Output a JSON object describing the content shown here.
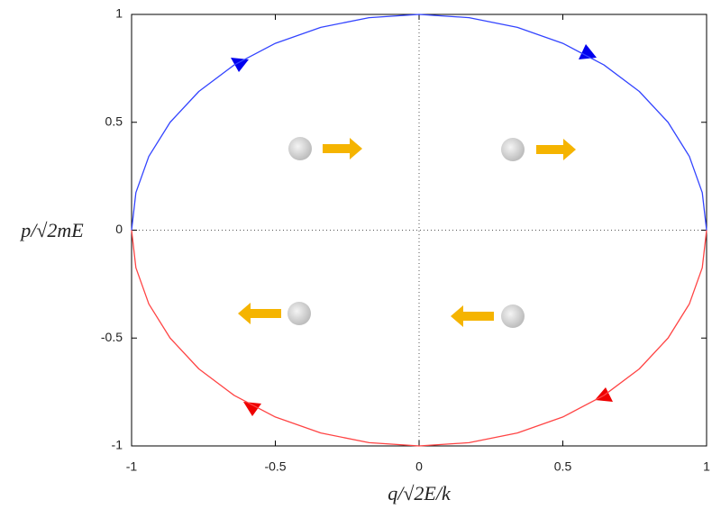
{
  "chart_data": {
    "type": "line",
    "x_label": "q/√2E/k",
    "y_label": "p/√2mE",
    "x": [
      -1,
      -0.985,
      -0.94,
      -0.866,
      -0.766,
      -0.643,
      -0.5,
      -0.342,
      -0.174,
      0,
      0.174,
      0.342,
      0.5,
      0.643,
      0.766,
      0.866,
      0.94,
      0.985,
      1
    ],
    "series": [
      {
        "color": "#3344ff",
        "values": [
          0,
          0.174,
          0.342,
          0.5,
          0.643,
          0.766,
          0.866,
          0.94,
          0.985,
          1,
          0.985,
          0.94,
          0.866,
          0.766,
          0.643,
          0.5,
          0.342,
          0.174,
          0
        ]
      },
      {
        "color": "#ff4444",
        "values": [
          0,
          -0.174,
          -0.342,
          -0.5,
          -0.643,
          -0.766,
          -0.866,
          -0.94,
          -0.985,
          -1,
          -0.985,
          -0.94,
          -0.866,
          -0.766,
          -0.643,
          -0.5,
          -0.342,
          -0.174,
          0
        ]
      }
    ],
    "xlim": [
      -1,
      1
    ],
    "ylim": [
      -1,
      1
    ],
    "xticks": [
      -1,
      -0.5,
      0,
      0.5,
      1
    ],
    "yticks": [
      -1,
      -0.5,
      0,
      0.5,
      1
    ]
  }
}
